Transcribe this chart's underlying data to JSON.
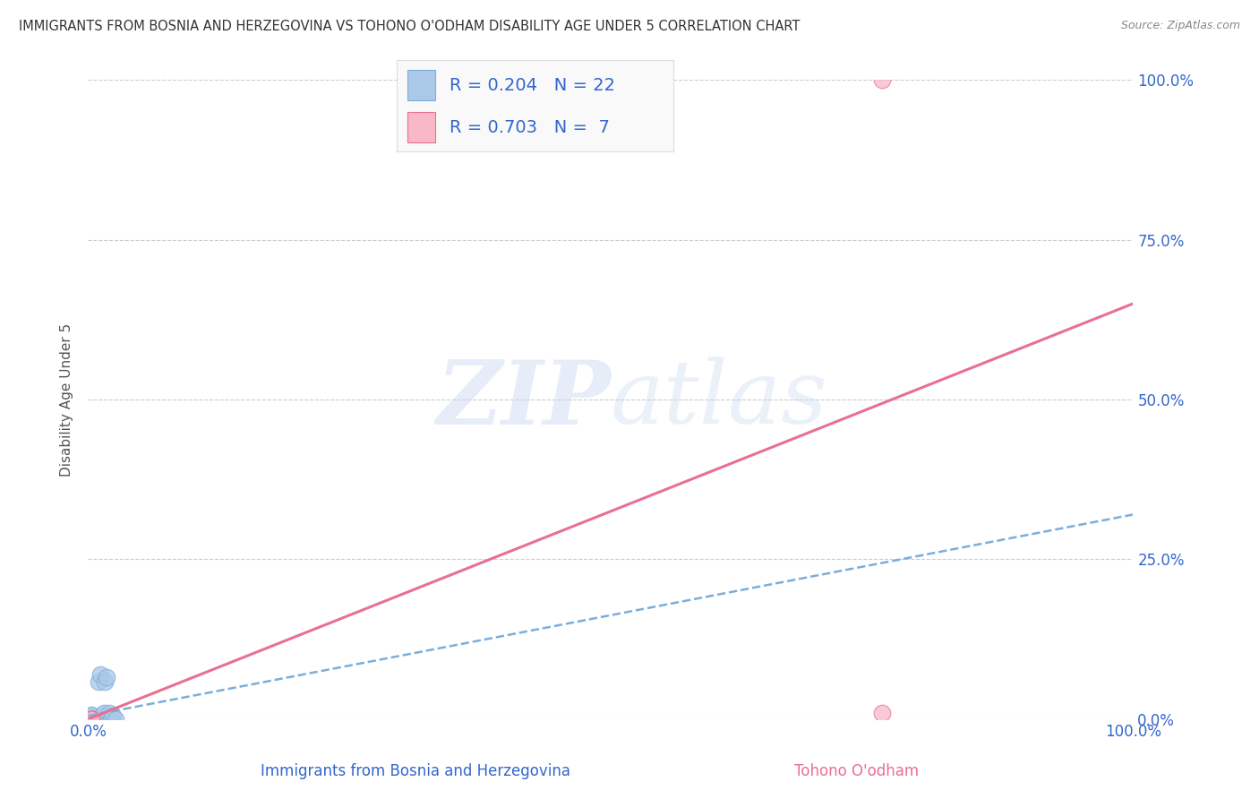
{
  "title": "IMMIGRANTS FROM BOSNIA AND HERZEGOVINA VS TOHONO O'ODHAM DISABILITY AGE UNDER 5 CORRELATION CHART",
  "source": "Source: ZipAtlas.com",
  "xlabel_bottom": "Immigrants from Bosnia and Herzegovina",
  "xlabel_bottom2": "Tohono O'odham",
  "ylabel": "Disability Age Under 5",
  "xlim": [
    0.0,
    1.0
  ],
  "ylim": [
    0.0,
    1.0
  ],
  "ytick_vals": [
    0.0,
    0.25,
    0.5,
    0.75,
    1.0
  ],
  "ytick_labels": [
    "0.0%",
    "25.0%",
    "50.0%",
    "75.0%",
    "100.0%"
  ],
  "xtick_labels": [
    "0.0%",
    "100.0%"
  ],
  "xtick_vals": [
    0.0,
    1.0
  ],
  "blue_scatter_x": [
    0.003,
    0.003,
    0.003,
    0.003,
    0.003,
    0.003,
    0.003,
    0.003,
    0.004,
    0.005,
    0.006,
    0.007,
    0.01,
    0.012,
    0.013,
    0.015,
    0.016,
    0.018,
    0.02,
    0.022,
    0.024,
    0.026
  ],
  "blue_scatter_y": [
    0.0,
    0.0,
    0.0,
    0.0,
    0.0,
    0.0,
    0.005,
    0.007,
    0.0,
    0.0,
    0.0,
    0.0,
    0.058,
    0.07,
    0.005,
    0.01,
    0.058,
    0.065,
    0.01,
    0.0,
    0.005,
    0.0
  ],
  "pink_scatter_x": [
    0.76,
    0.76,
    0.003,
    0.003,
    0.003,
    0.003,
    0.003
  ],
  "pink_scatter_y": [
    1.0,
    0.01,
    0.0,
    0.0,
    0.0,
    0.0,
    0.0
  ],
  "blue_line_x": [
    0.0,
    1.0
  ],
  "blue_line_y": [
    0.005,
    0.32
  ],
  "pink_line_x": [
    0.0,
    1.0
  ],
  "pink_line_y": [
    0.0,
    0.65
  ],
  "legend_R_blue": "0.204",
  "legend_N_blue": "22",
  "legend_R_pink": "0.703",
  "legend_N_pink": "7",
  "blue_color": "#aac8e8",
  "blue_edge": "#7aaedd",
  "blue_line_color": "#7aaedd",
  "pink_color": "#f8b8c8",
  "pink_edge": "#e87090",
  "pink_line_color": "#e87090",
  "title_color": "#333333",
  "axis_label_color": "#3366cc",
  "ylabel_color": "#555555",
  "watermark_zip": "ZIP",
  "watermark_atlas": "atlas",
  "background_color": "#ffffff",
  "grid_color": "#cccccc",
  "legend_bg": "#f9f9f9",
  "legend_border": "#dddddd"
}
